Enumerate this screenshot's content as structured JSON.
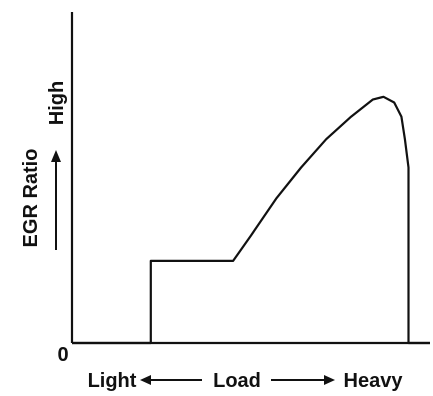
{
  "chart_data": {
    "type": "line",
    "title": "",
    "xlabel": "Load",
    "x_low_label": "Light",
    "x_high_label": "Heavy",
    "ylabel": "EGR Ratio",
    "y_high_label": "High",
    "origin_label": "0",
    "xlim": [
      0,
      100
    ],
    "ylim": [
      0,
      100
    ],
    "grid": false,
    "legend": "none",
    "series": [
      {
        "points": [
          [
            0,
            0
          ],
          [
            22,
            0
          ],
          [
            22,
            29
          ],
          [
            45,
            29
          ],
          [
            50,
            38
          ],
          [
            57,
            51
          ],
          [
            64,
            62
          ],
          [
            71,
            72
          ],
          [
            78,
            80
          ],
          [
            84,
            86
          ],
          [
            87,
            87
          ],
          [
            90,
            85
          ],
          [
            92,
            80
          ],
          [
            93,
            72
          ],
          [
            94,
            62
          ],
          [
            94,
            0
          ],
          [
            100,
            0
          ]
        ]
      }
    ],
    "colors": {
      "line": "#111111",
      "axis": "#111111",
      "text": "#111111"
    }
  }
}
